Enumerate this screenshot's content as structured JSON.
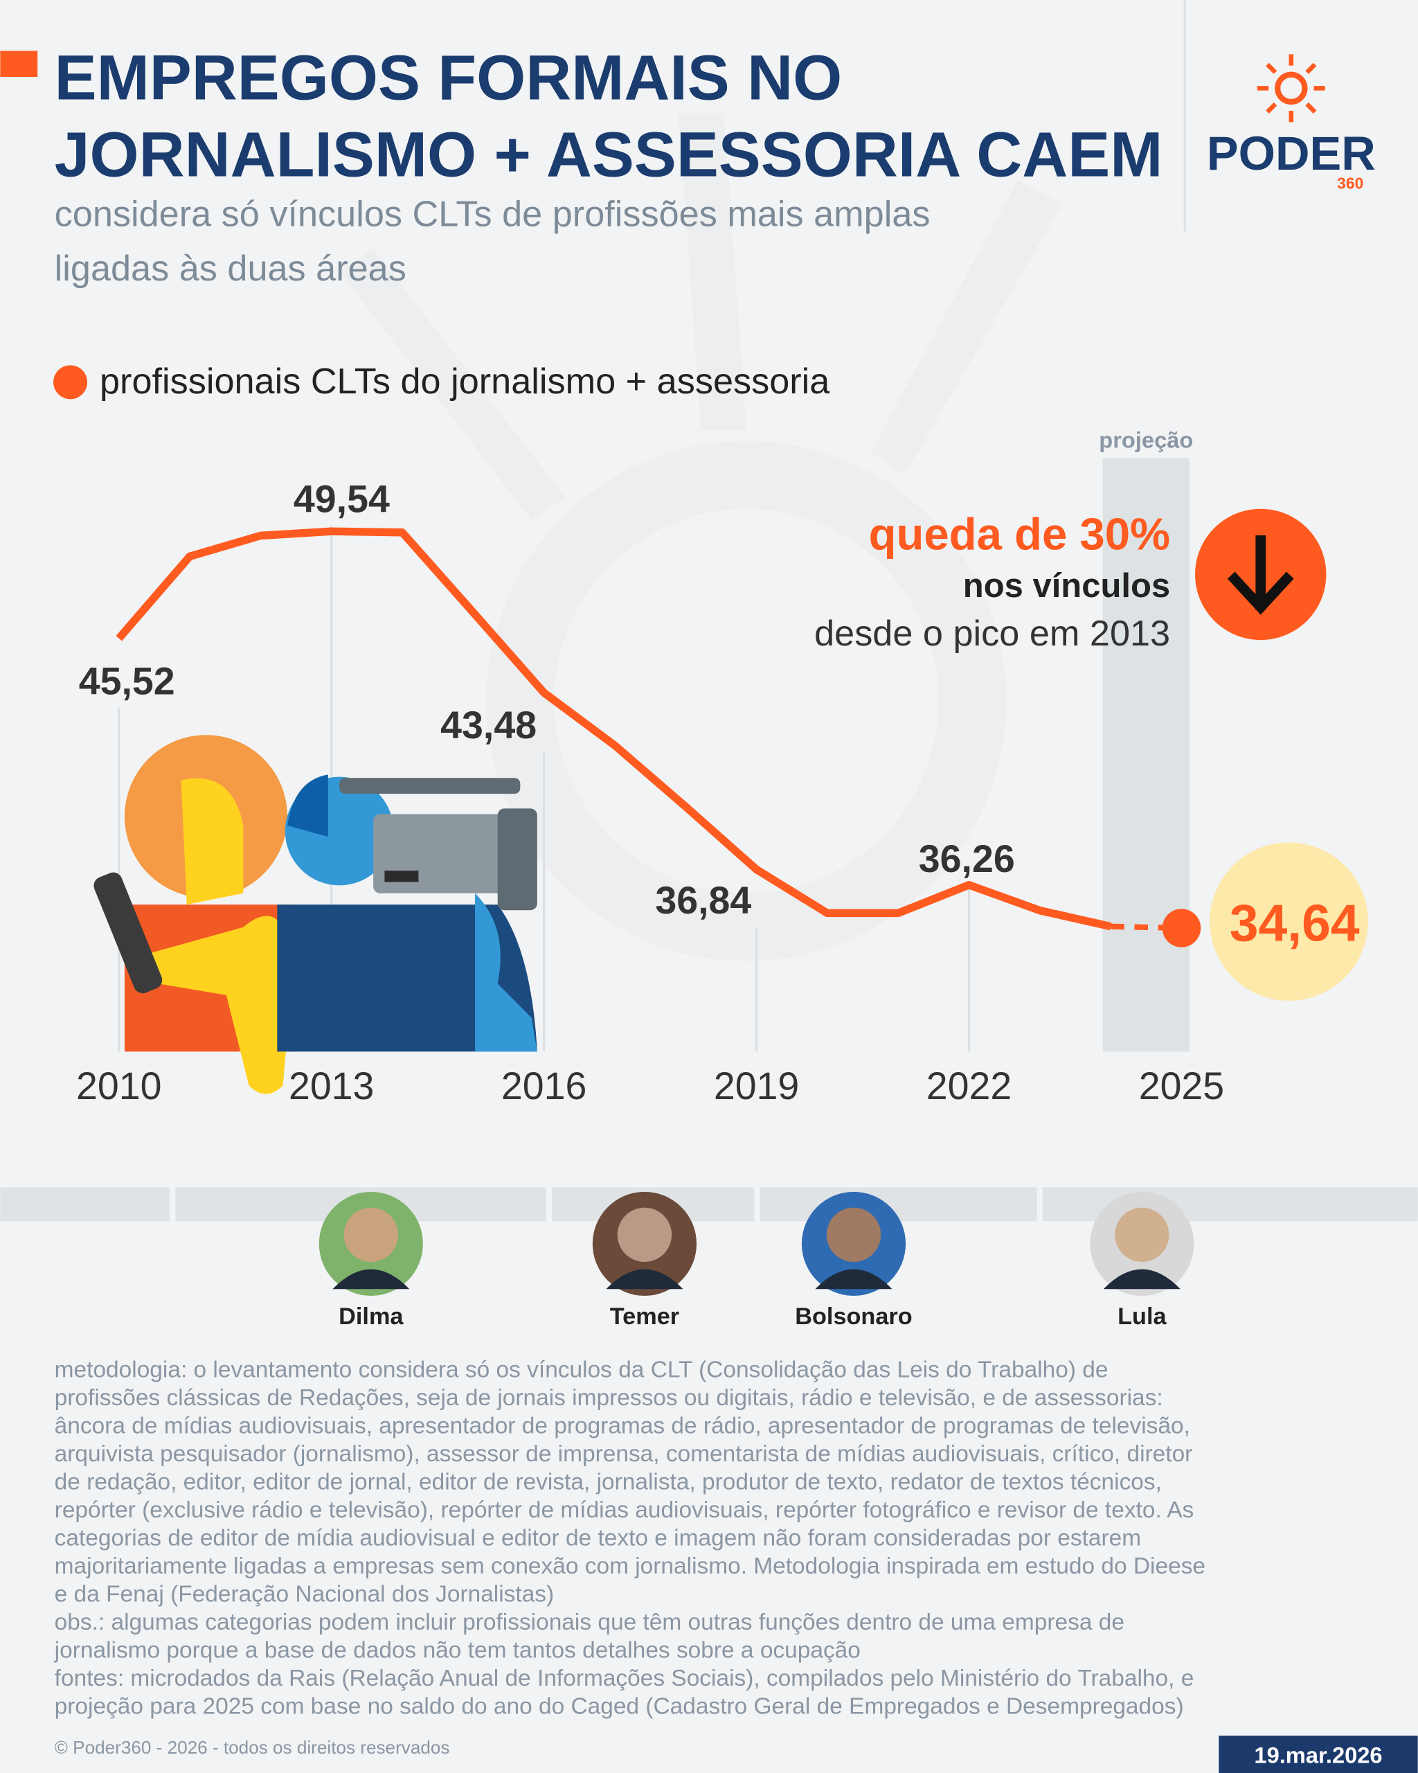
{
  "chart_data": {
    "type": "line",
    "title": [
      "EMPREGOS FORMAIS NO",
      "JORNALISMO + ASSESSORIA CAEM"
    ],
    "subtitle": [
      "considera só vínculos CLTs de profissões mais amplas",
      "ligadas às duas áreas"
    ],
    "x": [
      2010,
      2011,
      2012,
      2013,
      2014,
      2015,
      2016,
      2017,
      2018,
      2019,
      2020,
      2021,
      2022,
      2023,
      2024,
      2025
    ],
    "series": [
      {
        "name": "profissionais CLTs do jornalismo + assessoria",
        "color": "#ff5a1f",
        "values": [
          45.52,
          48.6,
          49.38,
          49.54,
          49.5,
          46.5,
          43.48,
          41.5,
          39.2,
          36.84,
          35.2,
          35.2,
          36.26,
          35.3,
          34.7,
          34.64
        ],
        "value_labels": [
          "45,52",
          null,
          null,
          "49,54",
          null,
          null,
          "43,48",
          null,
          null,
          "36,84",
          null,
          null,
          "36,26",
          null,
          null,
          "34,64"
        ]
      }
    ],
    "xlim": [
      2010,
      2025
    ],
    "xticks": [
      2010,
      2013,
      2016,
      2019,
      2022,
      2025
    ],
    "ylim": [
      30,
      52
    ],
    "projection": {
      "label": "projeção",
      "from": 2024,
      "to": 2025
    },
    "annotations": [
      "queda de 30%",
      "nos vínculos",
      "desde o pico em 2013"
    ]
  },
  "presidents": [
    "Dilma",
    "Temer",
    "Bolsonaro",
    "Lula"
  ],
  "logo": {
    "name": "PODER",
    "number": "360"
  },
  "notes": [
    "metodologia: o levantamento considera só os vínculos da CLT (Consolidação das Leis do Trabalho) de",
    "profissões clássicas de Redações, seja de jornais impressos ou digitais, rádio e televisão, e de assessorias:",
    "âncora de mídias audiovisuais, apresentador de programas de rádio, apresentador de programas de televisão,",
    "arquivista pesquisador (jornalismo), assessor de imprensa, comentarista de mídias audiovisuais, crítico, diretor",
    "de redação, editor, editor de jornal, editor de revista, jornalista, produtor de texto, redator de textos técnicos,",
    "repórter (exclusive rádio e televisão), repórter de mídias audiovisuais, repórter fotográfico e revisor de texto. As",
    "categorias de editor de mídia audiovisual e editor de texto e imagem não foram consideradas por estarem",
    "majoritariamente ligadas a empresas sem conexão com jornalismo. Metodologia inspirada em estudo do Dieese",
    "e da Fenaj (Federação Nacional dos Jornalistas)",
    "obs.: algumas categorias podem incluir profissionais que têm outras funções dentro de uma empresa de",
    "jornalismo porque a base de dados não tem tantos detalhes sobre a ocupação",
    "fontes: microdados da Rais (Relação Anual de Informações Sociais), compilados pelo Ministério do Trabalho, e",
    "projeção para 2025 com base no saldo do ano do Caged (Cadastro Geral de Empregados e Desempregados)"
  ],
  "footer": {
    "copyright": "© Poder360 - 2026 - todos os direitos reservados",
    "date": "19.mar.2026"
  }
}
